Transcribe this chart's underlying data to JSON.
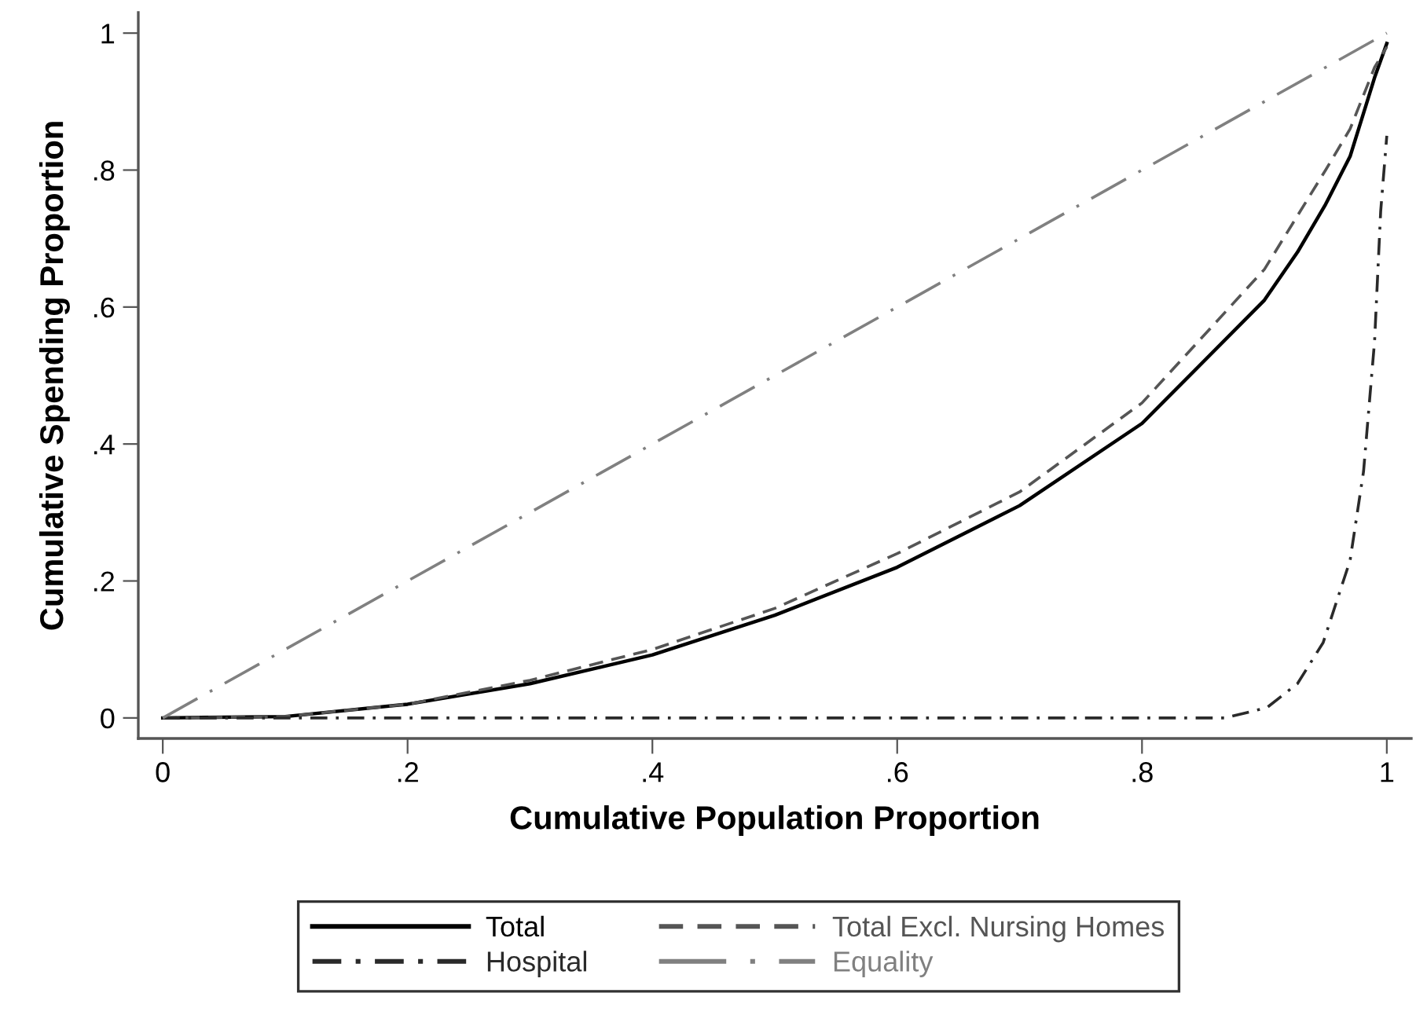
{
  "chart_data": {
    "type": "line",
    "xlabel": "Cumulative Population Proportion",
    "ylabel": "Cumulative Spending Proportion",
    "xlim": [
      -0.02,
      1.02
    ],
    "ylim": [
      -0.03,
      1.03
    ],
    "xticks": [
      0,
      {
        "value": 0.2,
        "label": ".2"
      },
      {
        "value": 0.4,
        "label": ".4"
      },
      {
        "value": 0.6,
        "label": ".6"
      },
      {
        "value": 0.8,
        "label": ".8"
      },
      1
    ],
    "yticks": [
      0,
      {
        "value": 0.2,
        "label": ".2"
      },
      {
        "value": 0.4,
        "label": ".4"
      },
      {
        "value": 0.6,
        "label": ".6"
      },
      {
        "value": 0.8,
        "label": ".8"
      },
      1
    ],
    "grid": false,
    "legend": "bottom",
    "marker": "none",
    "series": [
      {
        "name": "Total",
        "color": "#000000",
        "line_style": "solid",
        "x": [
          0,
          0.1,
          0.2,
          0.3,
          0.4,
          0.5,
          0.6,
          0.7,
          0.8,
          0.9,
          0.927,
          0.95,
          0.97,
          0.99,
          1
        ],
        "values": [
          0,
          0.002,
          0.02,
          0.05,
          0.092,
          0.15,
          0.22,
          0.31,
          0.43,
          0.61,
          0.68,
          0.75,
          0.82,
          0.935,
          0.985
        ]
      },
      {
        "name": "Total Excl. Nursing Homes",
        "color": "#555555",
        "line_style": "dashed",
        "x": [
          0,
          0.1,
          0.2,
          0.3,
          0.4,
          0.5,
          0.6,
          0.7,
          0.8,
          0.9,
          0.95,
          0.97,
          0.99,
          1
        ],
        "values": [
          0,
          0.002,
          0.02,
          0.055,
          0.1,
          0.16,
          0.24,
          0.33,
          0.46,
          0.655,
          0.8,
          0.86,
          0.95,
          0.98
        ]
      },
      {
        "name": "Hospital",
        "color": "#2a2a2a",
        "line_style": "dashdot",
        "x": [
          0,
          0.2,
          0.4,
          0.6,
          0.8,
          0.868,
          0.902,
          0.927,
          0.948,
          0.97,
          0.981,
          0.99,
          0.995,
          1
        ],
        "values": [
          0,
          0,
          0,
          0,
          0,
          0,
          0.015,
          0.05,
          0.11,
          0.23,
          0.36,
          0.55,
          0.74,
          0.85
        ]
      },
      {
        "name": "Equality",
        "color": "#808080",
        "line_style": "longdashdot",
        "x": [
          0,
          1
        ],
        "values": [
          0,
          1
        ]
      }
    ]
  }
}
